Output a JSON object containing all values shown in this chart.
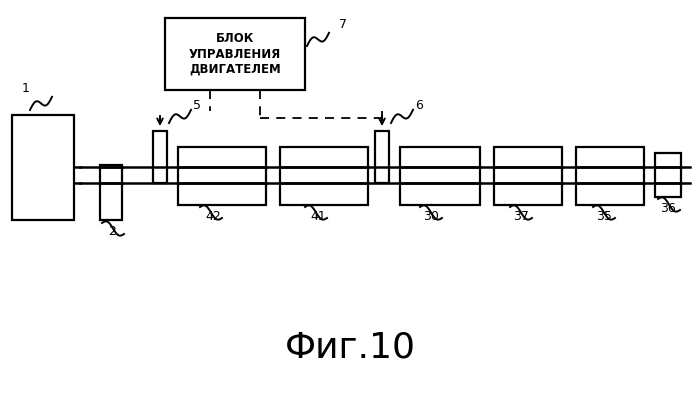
{
  "title": "Фиг.10",
  "title_fontsize": 26,
  "background_color": "#ffffff",
  "block_label": "БЛОК\nУПРАВЛЕНИЯ\nДВИГАТЕЛЕМ",
  "black": "#000000"
}
